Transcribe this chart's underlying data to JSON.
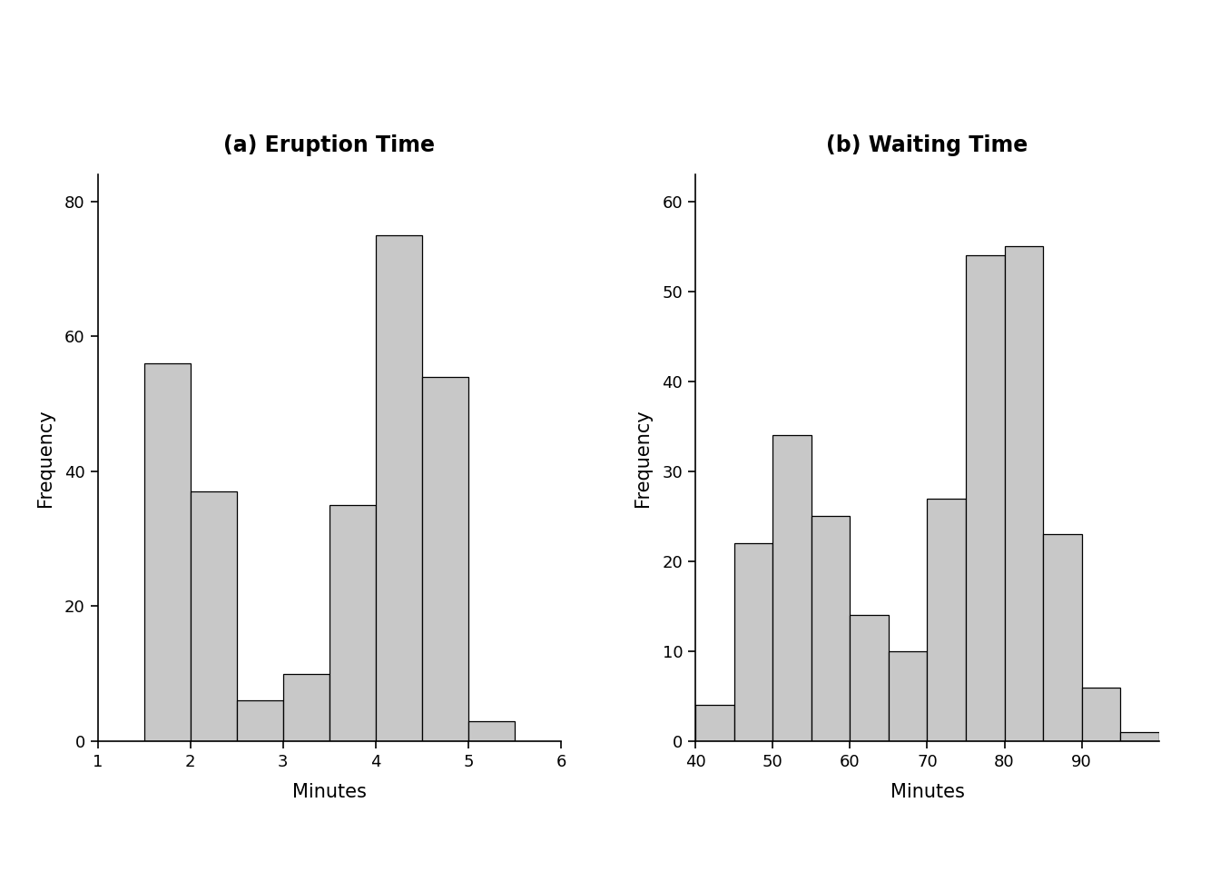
{
  "eruption": {
    "title": "(a) Eruption Time",
    "xlabel": "Minutes",
    "ylabel": "Frequency",
    "bar_edges": [
      1.5,
      2.0,
      2.5,
      3.0,
      3.5,
      4.0,
      4.5,
      5.0,
      5.5
    ],
    "bar_heights": [
      56,
      37,
      6,
      10,
      35,
      75,
      54,
      3
    ],
    "xlim": [
      1,
      6
    ],
    "ylim": [
      0,
      84
    ],
    "xticks": [
      1,
      2,
      3,
      4,
      5,
      6
    ],
    "yticks": [
      0,
      20,
      40,
      60,
      80
    ]
  },
  "waiting": {
    "title": "(b) Waiting Time",
    "xlabel": "Minutes",
    "ylabel": "Frequency",
    "bar_edges": [
      40,
      45,
      50,
      55,
      60,
      65,
      70,
      75,
      80,
      85,
      90,
      95,
      100
    ],
    "bar_heights": [
      4,
      22,
      34,
      25,
      14,
      10,
      27,
      54,
      55,
      23,
      6,
      1
    ],
    "xlim": [
      40,
      100
    ],
    "ylim": [
      0,
      63
    ],
    "xticks": [
      40,
      50,
      60,
      70,
      80,
      90
    ],
    "yticks": [
      0,
      10,
      20,
      30,
      40,
      50,
      60
    ]
  },
  "bar_color": "#c8c8c8",
  "bar_edgecolor": "#000000",
  "background_color": "#ffffff",
  "title_fontsize": 17,
  "label_fontsize": 15,
  "tick_fontsize": 13
}
